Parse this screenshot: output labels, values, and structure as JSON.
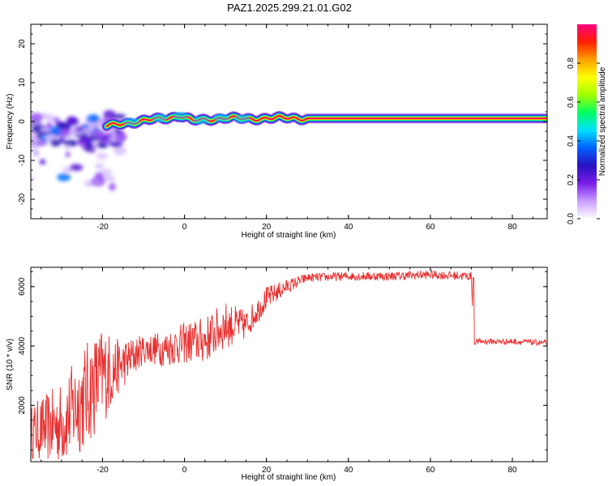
{
  "chart_data": [
    {
      "type": "heatmap",
      "title": "PAZ1.2025.299.21.01.G02",
      "xlabel": "Height of straight line (km)",
      "ylabel": "Frequency (Hz)",
      "xlim": [
        -37.5,
        88.5
      ],
      "ylim": [
        -25,
        25
      ],
      "xticks": [
        "-20",
        "0",
        "20",
        "40",
        "60",
        "80"
      ],
      "xtick_values": [
        -20,
        0,
        20,
        40,
        60,
        80
      ],
      "yticks": [
        "-20",
        "-10",
        "0",
        "10",
        "20"
      ],
      "ytick_values": [
        -20,
        -10,
        0,
        10,
        20
      ],
      "colorbar": {
        "label": "Normalized spectral amplitude",
        "range": [
          0,
          1
        ],
        "ticks": [
          "0.0",
          "0.2",
          "0.4",
          "0.6",
          "0.8"
        ],
        "tick_values": [
          0.0,
          0.2,
          0.4,
          0.6,
          0.8
        ],
        "colors": [
          "#ffffff",
          "#c89cff",
          "#7a1ee8",
          "#2a10c0",
          "#0060ff",
          "#00e0ff",
          "#00ff60",
          "#a0ff00",
          "#ffff00",
          "#ffa000",
          "#ff2000",
          "#ff0080"
        ]
      },
      "ridge": {
        "x_start": -19,
        "x_end": 88.5,
        "frequency_hz": [
          {
            "x": -19,
            "f": -1.2
          },
          {
            "x": -15,
            "f": -0.5
          },
          {
            "x": -10,
            "f": 0.2
          },
          {
            "x": -5,
            "f": 0.8
          },
          {
            "x": -1,
            "f": 1.5
          },
          {
            "x": 2,
            "f": 0.2
          },
          {
            "x": 5,
            "f": 0.4
          },
          {
            "x": 10,
            "f": 1.0
          },
          {
            "x": 15,
            "f": 0.6
          },
          {
            "x": 20,
            "f": 0.9
          },
          {
            "x": 30,
            "f": 0.8
          },
          {
            "x": 88.5,
            "f": 0.8
          }
        ]
      },
      "noisy_region": {
        "x": [
          -37.5,
          -19
        ],
        "f": [
          -20,
          4
        ]
      }
    },
    {
      "type": "line",
      "xlabel": "Height of straight line (km)",
      "ylabel": "SNR (10 * v/v)",
      "xlim": [
        -37.5,
        88.5
      ],
      "ylim": [
        100,
        6650
      ],
      "xticks": [
        "-20",
        "0",
        "20",
        "40",
        "60",
        "80"
      ],
      "xtick_values": [
        -20,
        0,
        20,
        40,
        60,
        80
      ],
      "yticks": [
        "2000",
        "4000",
        "6000"
      ],
      "ytick_values": [
        2000,
        4000,
        6000
      ],
      "color": "#e83030",
      "envelope": [
        {
          "x": -37.5,
          "y": 1100,
          "amp": 900
        },
        {
          "x": -30,
          "y": 1400,
          "amp": 1400
        },
        {
          "x": -25,
          "y": 2200,
          "amp": 1800
        },
        {
          "x": -20,
          "y": 3000,
          "amp": 1700
        },
        {
          "x": -16,
          "y": 3300,
          "amp": 900
        },
        {
          "x": -10,
          "y": 3900,
          "amp": 500
        },
        {
          "x": -5,
          "y": 3900,
          "amp": 600
        },
        {
          "x": 0,
          "y": 4100,
          "amp": 700
        },
        {
          "x": 5,
          "y": 4200,
          "amp": 800
        },
        {
          "x": 10,
          "y": 4700,
          "amp": 800
        },
        {
          "x": 15,
          "y": 4700,
          "amp": 500
        },
        {
          "x": 20,
          "y": 5600,
          "amp": 400
        },
        {
          "x": 25,
          "y": 6000,
          "amp": 250
        },
        {
          "x": 30,
          "y": 6300,
          "amp": 150
        },
        {
          "x": 40,
          "y": 6350,
          "amp": 150
        },
        {
          "x": 50,
          "y": 6350,
          "amp": 150
        },
        {
          "x": 60,
          "y": 6400,
          "amp": 150
        },
        {
          "x": 70,
          "y": 6350,
          "amp": 150
        },
        {
          "x": 70.6,
          "y": 4000,
          "amp": 0
        },
        {
          "x": 71,
          "y": 4150,
          "amp": 100
        },
        {
          "x": 80,
          "y": 4150,
          "amp": 100
        },
        {
          "x": 88.5,
          "y": 4100,
          "amp": 100
        }
      ]
    }
  ]
}
